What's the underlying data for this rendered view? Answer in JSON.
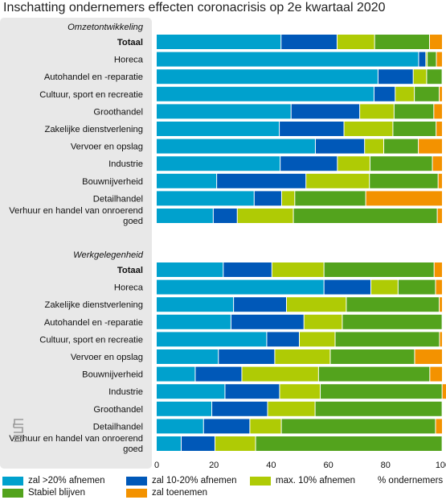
{
  "title": "Inschatting ondernemers effecten coronacrisis op 2e kwartaal 2020",
  "chart_data": {
    "type": "bar",
    "orientation": "horizontal",
    "stacked": true,
    "xlim": [
      0,
      100
    ],
    "x_ticks": [
      0,
      20,
      40,
      60,
      80,
      100
    ],
    "xlabel": "% ondernemers",
    "legend_position": "bottom",
    "series_names": [
      "zal >20% afnemen",
      "zal 10-20% afnemen",
      "max. 10% afnemen",
      "Stabiel blijven",
      "zal toenemen"
    ],
    "colors": [
      "#00a1cd",
      "#0058b8",
      "#afcb05",
      "#53a31d",
      "#f39200"
    ],
    "groups": [
      {
        "name": "Omzetontwikkeling",
        "categories": [
          "Totaal",
          "Horeca",
          "Autohandel en -reparatie",
          "Cultuur, sport en recreatie",
          "Groothandel",
          "Zakelijke dienstverlening",
          "Vervoer en opslag",
          "Industrie",
          "Bouwnijverheid",
          "Detailhandel",
          "Verhuur en handel van onroerend goed"
        ],
        "values": [
          [
            43.6,
            19.6,
            13.1,
            19.2,
            4.5
          ],
          [
            91.7,
            2.5,
            0.5,
            3.2,
            2.1
          ],
          [
            77.5,
            12.3,
            4.7,
            5.4,
            0.1
          ],
          [
            76.1,
            7.4,
            6.7,
            8.7,
            1.1
          ],
          [
            47.1,
            24,
            12,
            13.9,
            3
          ],
          [
            43,
            22.6,
            17.1,
            15.1,
            2.2
          ],
          [
            55.6,
            17.2,
            6.7,
            12.1,
            8.4
          ],
          [
            43.3,
            20,
            11.4,
            21.8,
            3.5
          ],
          [
            21.1,
            31.2,
            22.2,
            24,
            1.5
          ],
          [
            34.2,
            9.6,
            4.6,
            24.8,
            26.8
          ],
          [
            19.9,
            8.4,
            19.6,
            50.3,
            1.8
          ]
        ]
      },
      {
        "name": "Werkgelegenheid",
        "categories": [
          "Totaal",
          "Horeca",
          "Zakelijke dienstverlening",
          "Autohandel en -reparatie",
          "Cultuur, sport en recreatie",
          "Vervoer en opslag",
          "Bouwnijverheid",
          "Industrie",
          "Groothandel",
          "Detailhandel",
          "Verhuur en handel van onroerend goed"
        ],
        "values": [
          [
            23.4,
            17,
            18.2,
            38.5,
            2.9
          ],
          [
            58.6,
            16.4,
            9.5,
            13.1,
            2.4
          ],
          [
            27,
            18.5,
            20.9,
            32.5,
            1.1
          ],
          [
            26.1,
            25.5,
            13.4,
            34.9,
            0.1
          ],
          [
            38.6,
            11.4,
            12.5,
            36.5,
            1
          ],
          [
            21.7,
            19.7,
            19.4,
            29.5,
            9.7
          ],
          [
            13.6,
            16.3,
            26.8,
            38.9,
            4.4
          ],
          [
            24,
            19.1,
            14.2,
            42.6,
            2.1
          ],
          [
            19.4,
            19.5,
            16.6,
            44.4,
            0.1
          ],
          [
            16.5,
            16.2,
            11,
            53.9,
            2.4
          ],
          [
            8.7,
            11.8,
            14.2,
            65.2,
            0.1
          ]
        ]
      }
    ]
  }
}
